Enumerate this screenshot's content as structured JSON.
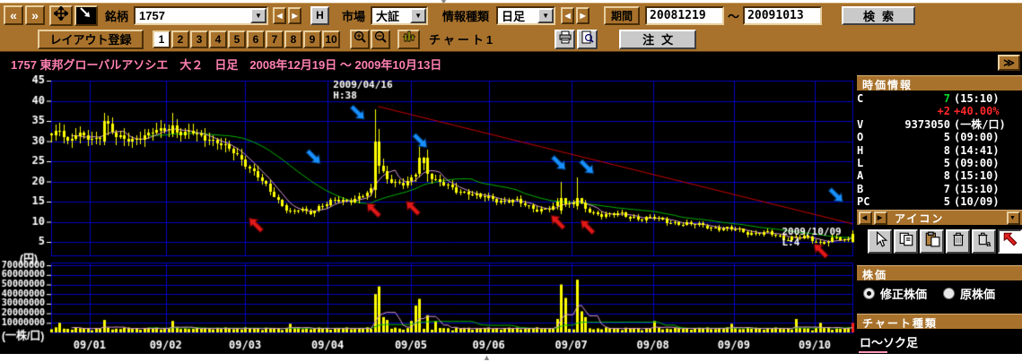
{
  "toolbar": {
    "back_label": "«",
    "fwd_label": "»",
    "symbol_label": "銘柄",
    "symbol_value": "1757",
    "h_button": "H",
    "market_label": "市場",
    "market_value": "大証",
    "info_label": "情報種類",
    "info_value": "日足",
    "period_label": "期間",
    "period_from": "20081219",
    "period_tilde": "～",
    "period_to": "20091013",
    "search_label": "検索"
  },
  "toolbar2": {
    "layout_label": "レイアウト登録",
    "layout_numbers": [
      "1",
      "2",
      "3",
      "4",
      "5",
      "6",
      "7",
      "8",
      "9",
      "10"
    ],
    "active_layout": "1",
    "chart_name": "チャート1",
    "order_label": "注文"
  },
  "expand_label": "≫",
  "chart": {
    "type": "candlestick_with_volume",
    "title": "1757 東邦グローバルアソシエ　大２　日足　2008年12月19日 ～ 2009年10月13日",
    "y_unit": "(円)",
    "vol_unit": "(一株/口)",
    "price_ticks": [
      45,
      40,
      35,
      30,
      25,
      20,
      15,
      10,
      5
    ],
    "vol_ticks": [
      "70000000",
      "60000000",
      "50000000",
      "40000000",
      "30000000",
      "20000000",
      "10000000"
    ],
    "x_ticks": [
      {
        "label": "09/01",
        "f": 0.048
      },
      {
        "label": "09/02",
        "f": 0.143
      },
      {
        "label": "09/03",
        "f": 0.242
      },
      {
        "label": "09/04",
        "f": 0.345
      },
      {
        "label": "09/05",
        "f": 0.449
      },
      {
        "label": "09/06",
        "f": 0.546
      },
      {
        "label": "09/07",
        "f": 0.649
      },
      {
        "label": "09/08",
        "f": 0.751
      },
      {
        "label": "09/09",
        "f": 0.852
      },
      {
        "label": "09/10",
        "f": 0.953
      }
    ],
    "annotations": {
      "high": {
        "date": "2009/04/16",
        "label": "H:38",
        "tf": 0.352,
        "dp": 43.2,
        "lp": 40.6
      },
      "low": {
        "date": "2009/10/09",
        "label": "L:4",
        "tf": 0.912,
        "dp": 6.8,
        "lp": 4.2
      }
    },
    "trendline": {
      "from": {
        "f": 0.408,
        "p": 38.6
      },
      "to": {
        "f": 1.0,
        "p": 9.5
      },
      "color": "#c80000"
    },
    "price_anchors": [
      [
        0.0,
        31
      ],
      [
        0.01,
        33
      ],
      [
        0.02,
        30
      ],
      [
        0.032,
        32
      ],
      [
        0.048,
        30
      ],
      [
        0.06,
        31
      ],
      [
        0.068,
        35
      ],
      [
        0.08,
        31
      ],
      [
        0.095,
        30
      ],
      [
        0.11,
        31
      ],
      [
        0.125,
        32
      ],
      [
        0.143,
        33
      ],
      [
        0.15,
        34
      ],
      [
        0.16,
        32
      ],
      [
        0.175,
        32
      ],
      [
        0.19,
        31
      ],
      [
        0.205,
        30
      ],
      [
        0.22,
        28
      ],
      [
        0.235,
        26
      ],
      [
        0.25,
        23
      ],
      [
        0.262,
        20
      ],
      [
        0.275,
        17
      ],
      [
        0.29,
        14
      ],
      [
        0.3,
        12
      ],
      [
        0.31,
        13
      ],
      [
        0.32,
        12
      ],
      [
        0.335,
        14
      ],
      [
        0.35,
        15
      ],
      [
        0.365,
        15
      ],
      [
        0.38,
        16
      ],
      [
        0.395,
        17
      ],
      [
        0.403,
        18
      ],
      [
        0.405,
        30
      ],
      [
        0.41,
        24
      ],
      [
        0.418,
        21
      ],
      [
        0.428,
        20
      ],
      [
        0.438,
        19
      ],
      [
        0.448,
        20
      ],
      [
        0.455,
        22
      ],
      [
        0.462,
        26
      ],
      [
        0.47,
        22
      ],
      [
        0.48,
        20
      ],
      [
        0.492,
        19
      ],
      [
        0.505,
        18
      ],
      [
        0.52,
        17
      ],
      [
        0.535,
        16
      ],
      [
        0.55,
        16
      ],
      [
        0.565,
        15
      ],
      [
        0.58,
        15
      ],
      [
        0.595,
        14
      ],
      [
        0.61,
        13
      ],
      [
        0.625,
        13
      ],
      [
        0.636,
        16
      ],
      [
        0.645,
        14
      ],
      [
        0.655,
        16
      ],
      [
        0.665,
        13
      ],
      [
        0.675,
        12
      ],
      [
        0.69,
        12
      ],
      [
        0.705,
        12
      ],
      [
        0.72,
        11
      ],
      [
        0.735,
        11
      ],
      [
        0.75,
        11
      ],
      [
        0.765,
        10
      ],
      [
        0.78,
        10
      ],
      [
        0.8,
        9
      ],
      [
        0.82,
        9
      ],
      [
        0.84,
        8
      ],
      [
        0.86,
        8
      ],
      [
        0.88,
        7
      ],
      [
        0.9,
        7
      ],
      [
        0.915,
        6
      ],
      [
        0.93,
        6
      ],
      [
        0.945,
        6
      ],
      [
        0.958,
        5
      ],
      [
        0.97,
        5
      ],
      [
        0.98,
        6
      ],
      [
        0.99,
        5
      ],
      [
        1.0,
        7
      ]
    ],
    "candle_overrides": [
      {
        "f": 0.068,
        "o": 30,
        "h": 37,
        "l": 29,
        "c": 35
      },
      {
        "f": 0.15,
        "o": 32,
        "h": 37,
        "l": 31,
        "c": 34
      },
      {
        "f": 0.405,
        "o": 18,
        "h": 38,
        "l": 16,
        "c": 30
      },
      {
        "f": 0.41,
        "o": 30,
        "h": 33,
        "l": 22,
        "c": 24
      },
      {
        "f": 0.462,
        "o": 22,
        "h": 29,
        "l": 21,
        "c": 26
      },
      {
        "f": 0.47,
        "o": 26,
        "h": 28,
        "l": 20,
        "c": 22
      },
      {
        "f": 0.636,
        "o": 13,
        "h": 20,
        "l": 12,
        "c": 16
      },
      {
        "f": 0.655,
        "o": 14,
        "h": 21,
        "l": 13,
        "c": 16
      },
      {
        "f": 0.97,
        "o": 5,
        "h": 5.5,
        "l": 4,
        "c": 5
      },
      {
        "f": 1.0,
        "o": 5,
        "h": 8,
        "l": 5,
        "c": 7
      }
    ],
    "vol_spikes": [
      [
        0.01,
        10
      ],
      [
        0.068,
        13
      ],
      [
        0.15,
        12
      ],
      [
        0.3,
        9
      ],
      [
        0.403,
        20
      ],
      [
        0.405,
        40
      ],
      [
        0.408,
        48
      ],
      [
        0.412,
        16
      ],
      [
        0.418,
        13
      ],
      [
        0.448,
        12
      ],
      [
        0.455,
        28
      ],
      [
        0.462,
        35
      ],
      [
        0.47,
        18
      ],
      [
        0.48,
        12
      ],
      [
        0.63,
        14
      ],
      [
        0.636,
        50
      ],
      [
        0.64,
        36
      ],
      [
        0.655,
        55
      ],
      [
        0.66,
        22
      ],
      [
        0.665,
        16
      ],
      [
        0.75,
        12
      ],
      [
        0.85,
        9
      ],
      [
        0.93,
        14
      ],
      [
        0.96,
        10
      ],
      [
        1.0,
        10
      ]
    ],
    "arrows": {
      "down": [
        {
          "f": 0.328,
          "p": 26
        },
        {
          "f": 0.383,
          "p": 37
        },
        {
          "f": 0.461,
          "p": 30
        },
        {
          "f": 0.634,
          "p": 24.5
        },
        {
          "f": 0.669,
          "p": 23.5
        },
        {
          "f": 0.98,
          "p": 16.5
        }
      ],
      "up": [
        {
          "f": 0.255,
          "p": 9.3
        },
        {
          "f": 0.402,
          "p": 13
        },
        {
          "f": 0.451,
          "p": 13.5
        },
        {
          "f": 0.632,
          "p": 10
        },
        {
          "f": 0.669,
          "p": 8.8
        },
        {
          "f": 0.96,
          "p": 2.9
        }
      ]
    },
    "colors": {
      "grid": "#0000c0",
      "candle": "#ffff00",
      "ma_long": "#00b400",
      "ma_short": "#d898d8",
      "arrow_down": "#1890ff",
      "arrow_up": "#e01818",
      "vol_last": "#ff2020",
      "title": "#ff80b0"
    }
  },
  "quote_panel": {
    "title": "時価情報",
    "rows": [
      {
        "label": "C",
        "value": "7",
        "paren": "(15:10)",
        "value_color": "#00dc28"
      },
      {
        "label": "",
        "value": "+2",
        "paren": "+40.00%",
        "color": "#ff2828"
      },
      {
        "label": "V",
        "value": "9373050",
        "paren": "(一株/口)"
      },
      {
        "label": "O",
        "value": "5",
        "paren": "(09:00)"
      },
      {
        "label": "H",
        "value": "8",
        "paren": "(14:41)"
      },
      {
        "label": "L",
        "value": "5",
        "paren": "(09:00)"
      },
      {
        "label": "A",
        "value": "8",
        "paren": "(15:10)"
      },
      {
        "label": "B",
        "value": "7",
        "paren": "(15:10)"
      },
      {
        "label": "PC",
        "value": "5",
        "paren": "(10/09)"
      }
    ]
  },
  "icon_panel": {
    "title": "アイコン",
    "icons": [
      {
        "name": "cursor-icon"
      },
      {
        "name": "copy-icon"
      },
      {
        "name": "paste-icon"
      },
      {
        "name": "delete-icon"
      },
      {
        "name": "delete-all-icon"
      },
      {
        "name": "draw-arrow-icon",
        "selected": true
      }
    ]
  },
  "price_type_panel": {
    "title": "株価",
    "options": [
      {
        "label": "修正株価",
        "selected": true
      },
      {
        "label": "原株価",
        "selected": false
      }
    ]
  },
  "chart_type_panel": {
    "title": "チャート種類",
    "value": "ロ～ソク足"
  }
}
